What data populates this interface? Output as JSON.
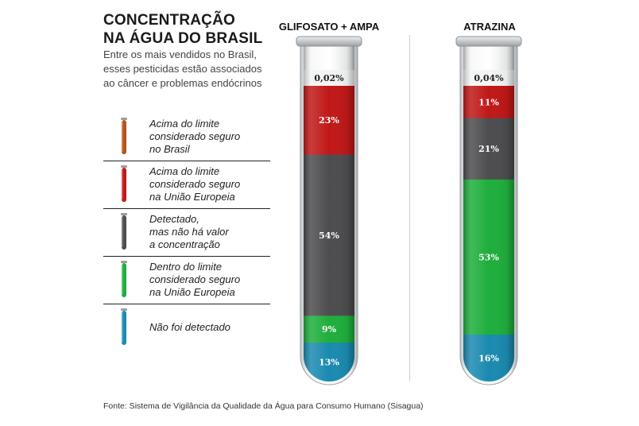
{
  "title_lines": [
    "CONCENTRAÇÃO",
    "NA ÁGUA DO BRASIL"
  ],
  "subtitle": "Entre os mais vendidos no Brasil, esses pesticidas estão associados ao câncer e problemas endócrinos",
  "legend": [
    {
      "lines": [
        "Acima do limite",
        "considerado seguro",
        "no Brasil"
      ],
      "color": "#b5531c"
    },
    {
      "lines": [
        "Acima do limite",
        "considerado seguro",
        "na União Europeia"
      ],
      "color": "#c01818"
    },
    {
      "lines": [
        "Detectado,",
        "mas não há valor",
        "a concentração"
      ],
      "color": "#4d4d4f"
    },
    {
      "lines": [
        "Dentro do limite",
        "considerado seguro",
        "na União Europeia"
      ],
      "color": "#1fae3c"
    },
    {
      "lines": [
        "Não foi detectado"
      ],
      "color": "#1b8ab0"
    }
  ],
  "chart_data": {
    "type": "bar",
    "stacked": true,
    "categories": [
      "GLIFOSATO + AMPA",
      "ATRAZINA"
    ],
    "series": [
      {
        "name": "Acima do limite considerado seguro no Brasil",
        "color": "#b5531c",
        "values": [
          0.02,
          0.04
        ],
        "labels": [
          "0,02%",
          "0,04%"
        ]
      },
      {
        "name": "Acima do limite considerado seguro na União Europeia",
        "color": "#c01818",
        "values": [
          23,
          11
        ],
        "labels": [
          "23%",
          "11%"
        ]
      },
      {
        "name": "Detectado, mas não há valor a concentração",
        "color": "#4d4d4f",
        "values": [
          54,
          21
        ],
        "labels": [
          "54%",
          "21%"
        ]
      },
      {
        "name": "Dentro do limite considerado seguro na União Europeia",
        "color": "#1fae3c",
        "values": [
          9,
          53
        ],
        "labels": [
          "9%",
          "53%"
        ]
      },
      {
        "name": "Não foi detectado",
        "color": "#1b8ab0",
        "values": [
          13,
          16
        ],
        "labels": [
          "13%",
          "16%"
        ]
      }
    ],
    "unit": "%"
  },
  "source": "Fonte: Sistema de Vigilância da Qualidade da Água para Consumo Humano (Sisagua)"
}
